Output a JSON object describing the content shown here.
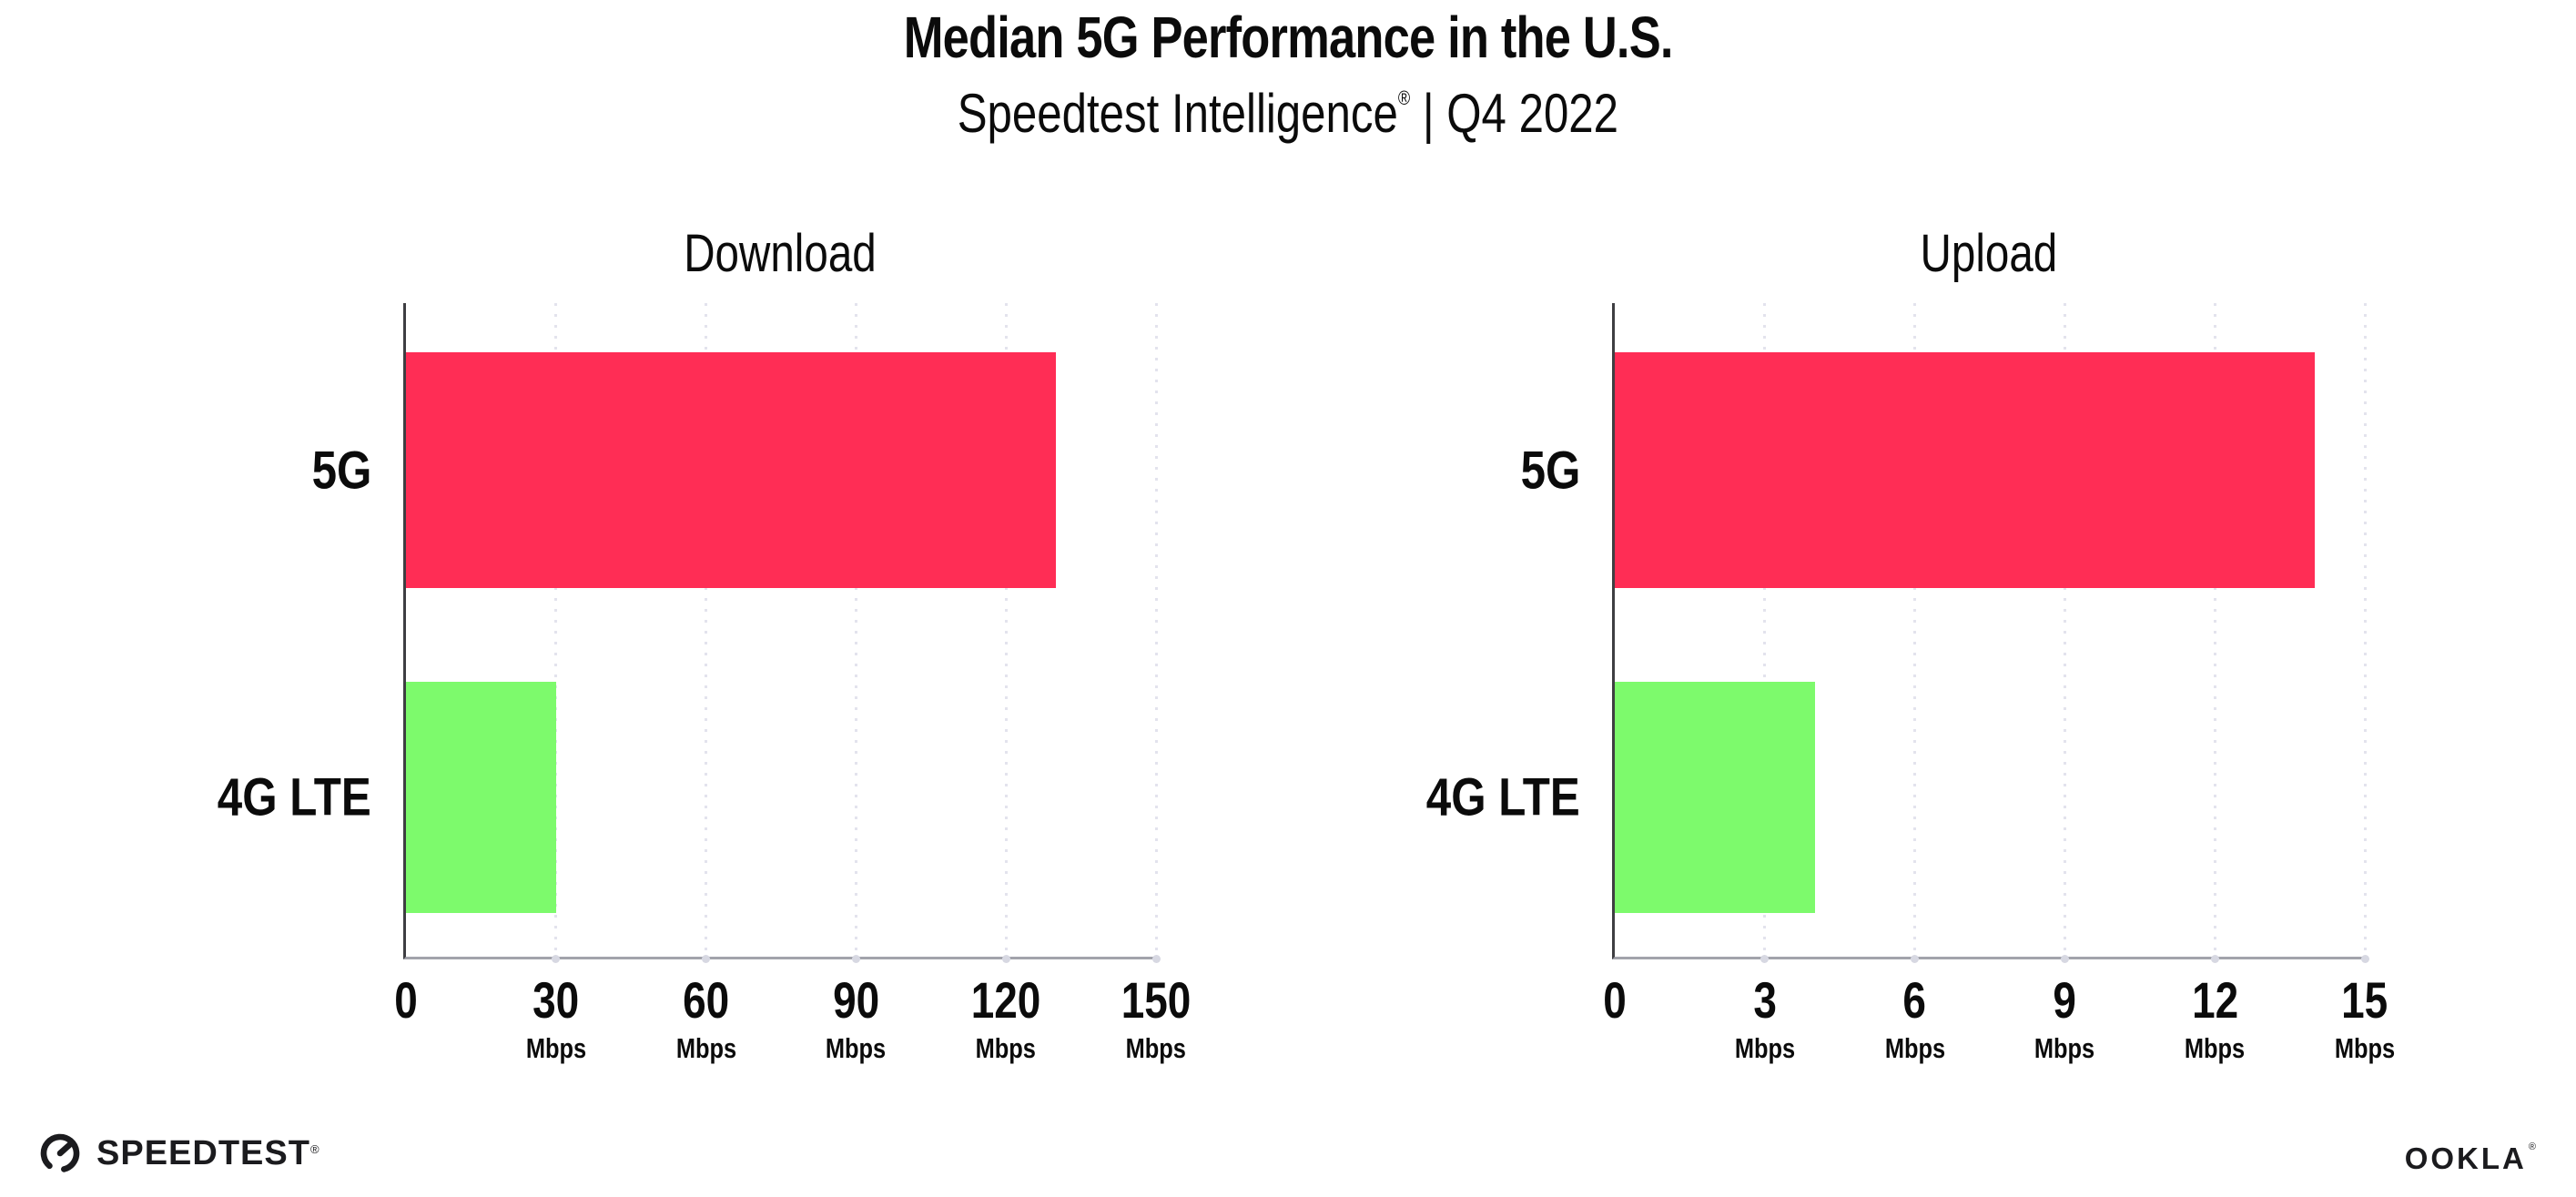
{
  "header": {
    "title": "Median 5G Performance in the U.S.",
    "subtitle_brand": "Speedtest Intelligence",
    "subtitle_reg": "®",
    "subtitle_rest": " | Q4 2022"
  },
  "chart_data": [
    {
      "type": "bar",
      "orientation": "horizontal",
      "title": "Download",
      "categories": [
        "5G",
        "4G LTE"
      ],
      "values": [
        130,
        30
      ],
      "value_unit": "Mbps",
      "xlim": [
        0,
        150
      ],
      "ticks": [
        0,
        30,
        60,
        90,
        120,
        150
      ],
      "tick_unit": "Mbps",
      "bar_colors": [
        "#FF2D55",
        "#7DFA6C"
      ],
      "grid": "dotted-vertical-on",
      "legend": "none"
    },
    {
      "type": "bar",
      "orientation": "horizontal",
      "title": "Upload",
      "categories": [
        "5G",
        "4G LTE"
      ],
      "values": [
        14,
        4
      ],
      "value_unit": "Mbps",
      "xlim": [
        0,
        15
      ],
      "ticks": [
        0,
        3,
        6,
        9,
        12,
        15
      ],
      "tick_unit": "Mbps",
      "bar_colors": [
        "#FF2D55",
        "#7DFA6C"
      ],
      "grid": "dotted-vertical-on",
      "legend": "none"
    }
  ],
  "colors": {
    "bar_5g": "#FF2D55",
    "bar_4g_lte": "#7DFA6C",
    "gridline": "#E3E3ED",
    "y_axis": "#3E3E42",
    "x_axis": "#A2A3AB",
    "text": "#0B0B0B"
  },
  "footer": {
    "speedtest_label": "SPEEDTEST",
    "speedtest_reg": "®",
    "ookla_label": "OOKLA",
    "ookla_reg": "®"
  }
}
